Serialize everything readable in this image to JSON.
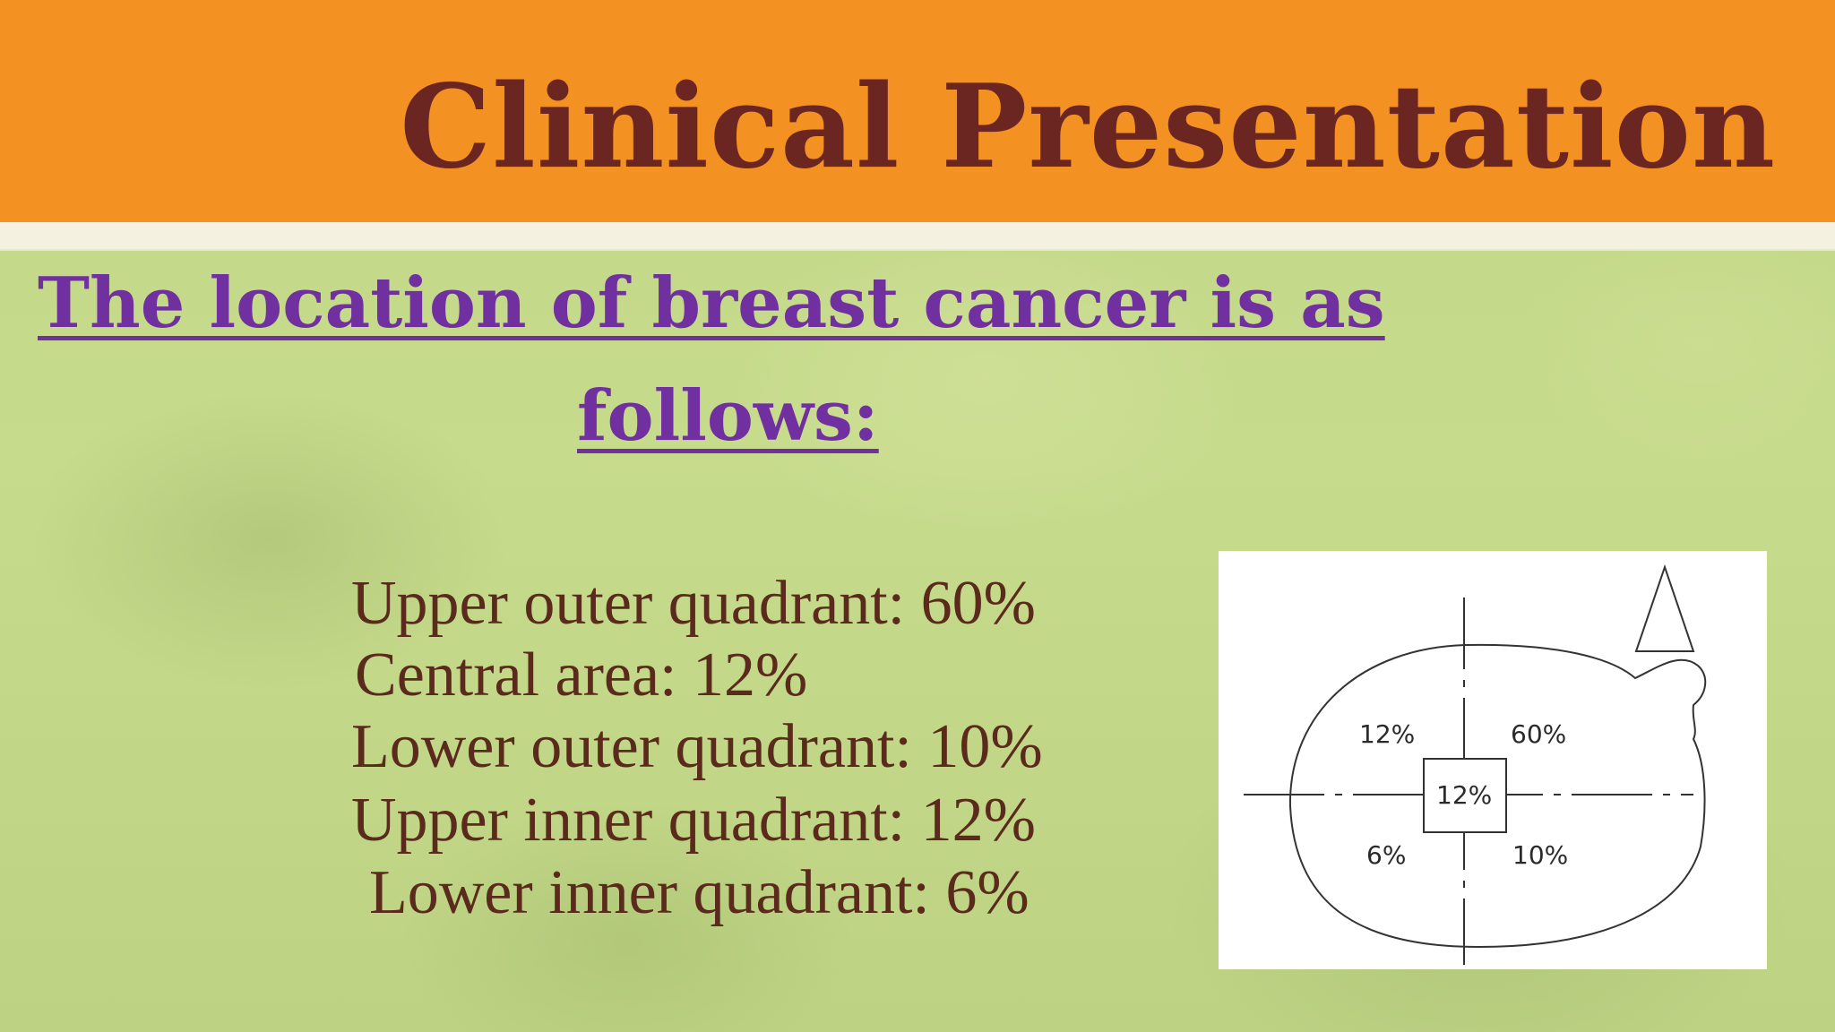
{
  "slide": {
    "title": "Clinical Presentation",
    "subtitle_line1": "The location of breast cancer is as",
    "subtitle_line2": "follows:",
    "stats": [
      "Upper outer quadrant: 60%",
      "Central area: 12%",
      "Lower outer quadrant: 10%",
      "Upper inner quadrant: 12%",
      "Lower inner quadrant: 6%"
    ]
  },
  "diagram": {
    "labels": {
      "upper_inner": "12%",
      "upper_outer": "60%",
      "central": "12%",
      "lower_inner": "6%",
      "lower_outer": "10%"
    }
  },
  "colors": {
    "header": "#f39222",
    "title": "#6b2622",
    "subtitle": "#7030a0",
    "body_text": "#5a2a1c",
    "background": "#c5d98a"
  }
}
